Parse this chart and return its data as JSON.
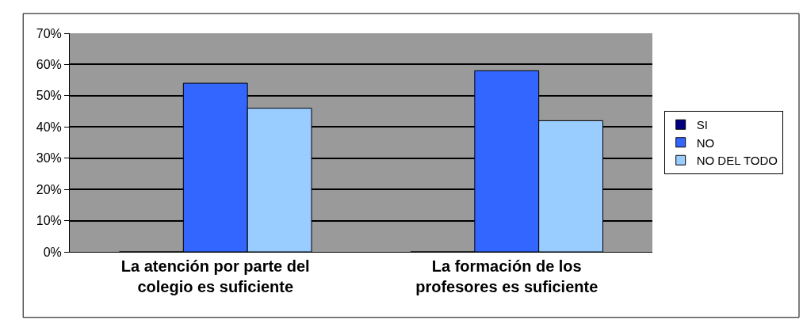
{
  "chart_data": {
    "type": "bar",
    "categories": [
      "La atención por parte del colegio es suficiente",
      "La formación de los profesores es suficiente"
    ],
    "series": [
      {
        "name": "SI",
        "color": "#000080",
        "values": [
          0,
          0
        ]
      },
      {
        "name": "NO",
        "color": "#3366ff",
        "values": [
          54,
          58
        ]
      },
      {
        "name": "NO DEL TODO",
        "color": "#99ccff",
        "values": [
          46,
          42
        ]
      }
    ],
    "ylim": [
      0,
      70
    ],
    "yticks": [
      {
        "value": 0,
        "label": "0%"
      },
      {
        "value": 10,
        "label": "10%"
      },
      {
        "value": 20,
        "label": "20%"
      },
      {
        "value": 30,
        "label": "30%"
      },
      {
        "value": 40,
        "label": "40%"
      },
      {
        "value": 50,
        "label": "50%"
      },
      {
        "value": 60,
        "label": "60%"
      },
      {
        "value": 70,
        "label": "70%"
      }
    ],
    "grid": "y",
    "legend": "right"
  }
}
